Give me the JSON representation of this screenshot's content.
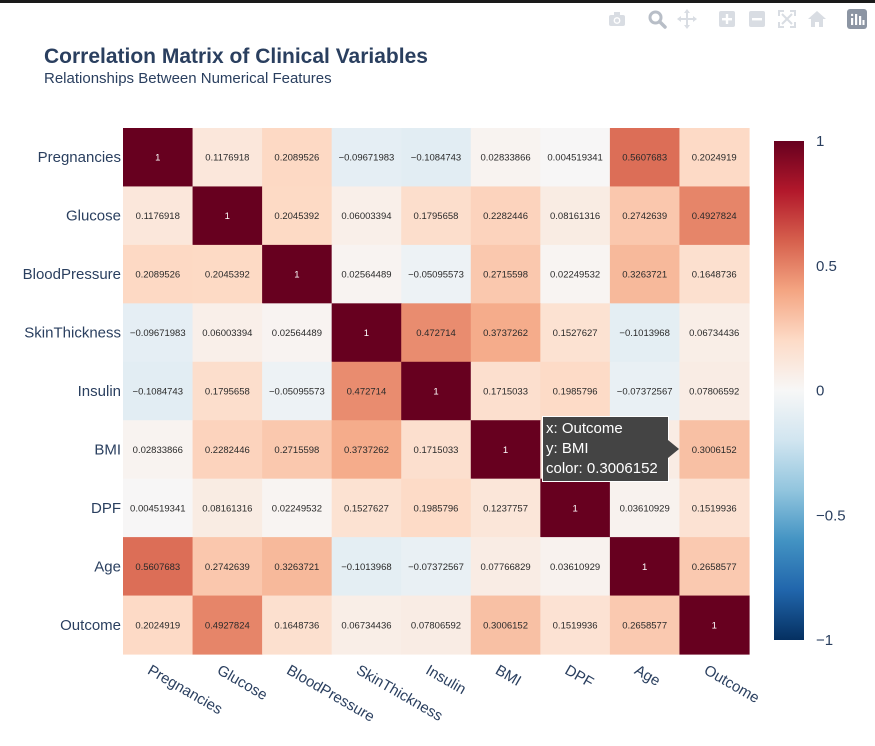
{
  "modebar": {
    "icons": [
      "camera-icon",
      "zoom-icon",
      "pan-icon",
      "zoom-in-icon",
      "zoom-out-icon",
      "autoscale-icon",
      "reset-axes-icon",
      "plotly-logo-icon"
    ]
  },
  "chart_data": {
    "type": "heatmap",
    "title": "Correlation Matrix of Clinical Variables",
    "subtitle": "Relationships Between Numerical Features",
    "x": [
      "Pregnancies",
      "Glucose",
      "BloodPressure",
      "SkinThickness",
      "Insulin",
      "BMI",
      "DPF",
      "Age",
      "Outcome"
    ],
    "y": [
      "Pregnancies",
      "Glucose",
      "BloodPressure",
      "SkinThickness",
      "Insulin",
      "BMI",
      "DPF",
      "Age",
      "Outcome"
    ],
    "z": [
      [
        1,
        0.1176918,
        0.2089526,
        -0.09671983,
        -0.1084743,
        0.02833866,
        0.004519341,
        0.5607683,
        0.2024919
      ],
      [
        0.1176918,
        1,
        0.2045392,
        0.06003394,
        0.1795658,
        0.2282446,
        0.08161316,
        0.2742639,
        0.4927824
      ],
      [
        0.2089526,
        0.2045392,
        1,
        0.02564489,
        -0.05095573,
        0.2715598,
        0.02249532,
        0.3263721,
        0.1648736
      ],
      [
        -0.09671983,
        0.06003394,
        0.02564489,
        1,
        0.472714,
        0.3737262,
        0.1527627,
        -0.1013968,
        0.06734436
      ],
      [
        -0.1084743,
        0.1795658,
        -0.05095573,
        0.472714,
        1,
        0.1715033,
        0.1985796,
        -0.07372567,
        0.07806592
      ],
      [
        0.02833866,
        0.2282446,
        0.2715598,
        0.3737262,
        0.1715033,
        1,
        0.1237757,
        0.07766829,
        0.3006152
      ],
      [
        0.004519341,
        0.08161316,
        0.02249532,
        0.1527627,
        0.1985796,
        0.1237757,
        1,
        0.03610929,
        0.1519936
      ],
      [
        0.5607683,
        0.2742639,
        0.3263721,
        -0.1013968,
        -0.07372567,
        0.07766829,
        0.03610929,
        1,
        0.2658577
      ],
      [
        0.2024919,
        0.4927824,
        0.1648736,
        0.06734436,
        0.07806592,
        0.3006152,
        0.1519936,
        0.2658577,
        1
      ]
    ],
    "colorscale": "RdBu reversed",
    "zmin": -1,
    "zmax": 1,
    "colorbar_ticks": [
      1,
      0.5,
      0,
      -0.5,
      -1
    ],
    "colorbar_tick_labels": [
      "1",
      "0.5",
      "0",
      "−0.5",
      "−1"
    ],
    "grid": false
  },
  "tooltip": {
    "x_line": "x: Outcome",
    "y_line": "y: BMI",
    "color_line": "color: 0.3006152"
  }
}
